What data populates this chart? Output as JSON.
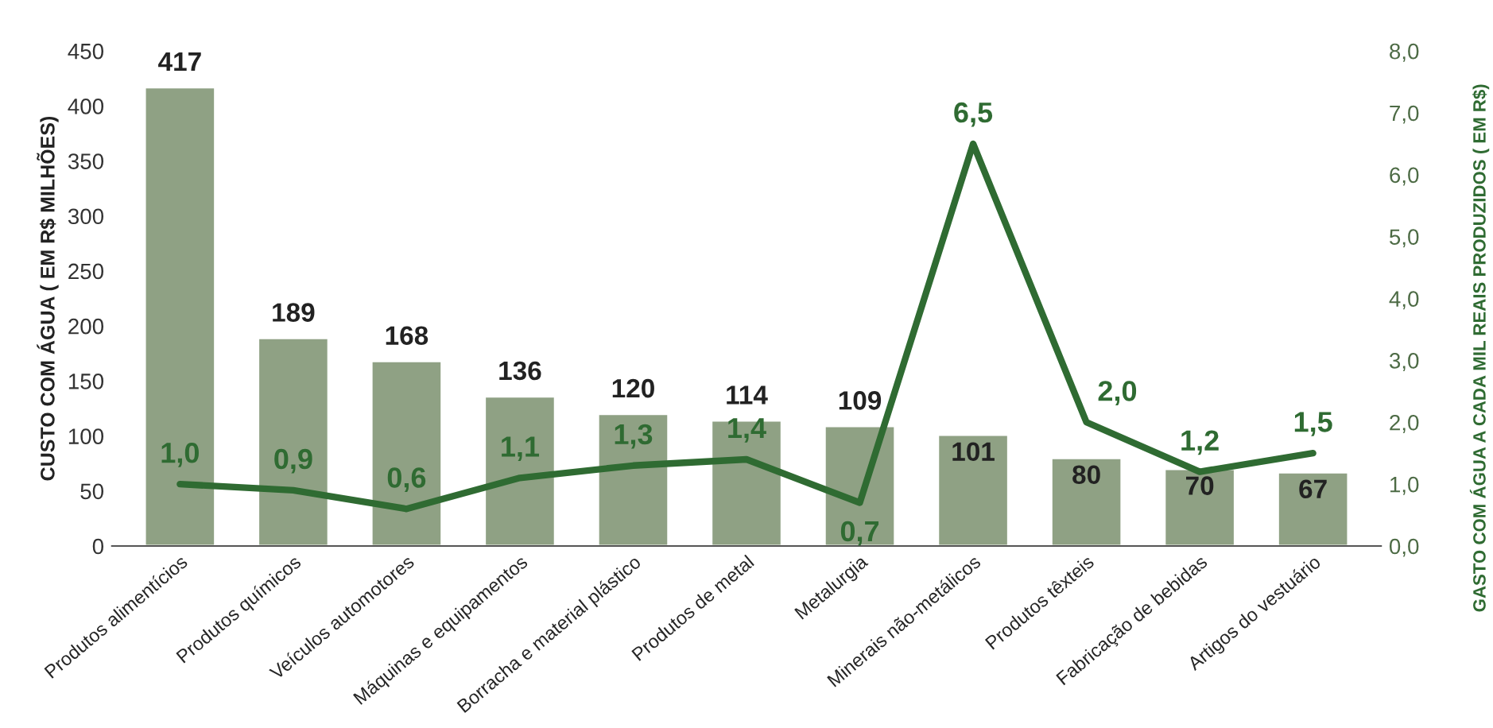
{
  "chart_data": {
    "type": "bar",
    "categories": [
      "Produtos alimentícios",
      "Produtos químicos",
      "Veículos automotores",
      "Máquinas e equipamentos",
      "Borracha e material plástico",
      "Produtos de metal",
      "Metalurgia",
      "Minerais não-metálicos",
      "Produtos têxteis",
      "Fabricação de bebidas",
      "Artigos do vestuário"
    ],
    "ylabel": "CUSTO COM ÁGUA ( EM R$ MILHÕES)",
    "y2label": "GASTO COM ÁGUA A CADA MIL REAIS PRODUZIDOS ( EM R$)",
    "ylim": [
      0,
      450
    ],
    "yticks": [
      0,
      50,
      100,
      150,
      200,
      250,
      300,
      350,
      400,
      450
    ],
    "y2lim": [
      0,
      8
    ],
    "y2ticks": [
      {
        "value": 0,
        "label": "0,0"
      },
      {
        "value": 1,
        "label": "1,0"
      },
      {
        "value": 2,
        "label": "2,0"
      },
      {
        "value": 3,
        "label": "3,0"
      },
      {
        "value": 4,
        "label": "4,0"
      },
      {
        "value": 5,
        "label": "5,0"
      },
      {
        "value": 6,
        "label": "6,0"
      },
      {
        "value": 7,
        "label": "7,0"
      },
      {
        "value": 8,
        "label": "8,0"
      }
    ],
    "grid": false,
    "legend": false,
    "series": [
      {
        "type": "bar",
        "color": "#8fa184",
        "values": [
          417,
          189,
          168,
          136,
          120,
          114,
          109,
          101,
          80,
          70,
          67
        ],
        "data_labels": true
      },
      {
        "type": "line",
        "axis": "y2",
        "color": "#2f6b32",
        "values": [
          1.0,
          0.9,
          0.6,
          1.1,
          1.3,
          1.4,
          0.7,
          6.5,
          2.0,
          1.2,
          1.5
        ],
        "value_labels": [
          "1,0",
          "0,9",
          "0,6",
          "1,1",
          "1,3",
          "1,4",
          "0,7",
          "6,5",
          "2,0",
          "1,2",
          "1,5"
        ],
        "marker": "none",
        "line_style": "solid"
      }
    ]
  }
}
